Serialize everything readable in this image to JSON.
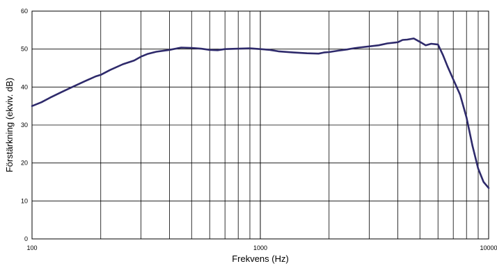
{
  "chart_data": {
    "type": "line",
    "title": "",
    "xlabel": "Frekvens (Hz)",
    "ylabel": "Förstärkning (ekviv. dB)",
    "xscale": "log",
    "xlim": [
      100,
      10000
    ],
    "ylim": [
      0,
      60
    ],
    "grid": true,
    "legend": "none",
    "x_tick_labels": [
      "100",
      "1000",
      "10000"
    ],
    "y_tick_labels": [
      "0",
      "10",
      "20",
      "30",
      "40",
      "50",
      "60"
    ],
    "series": [
      {
        "color": "#2e2a6b",
        "x": [
          100,
          110,
          120,
          135,
          150,
          170,
          190,
          200,
          220,
          250,
          280,
          300,
          320,
          350,
          400,
          450,
          500,
          550,
          600,
          650,
          700,
          800,
          900,
          1000,
          1100,
          1200,
          1400,
          1600,
          1800,
          1900,
          2000,
          2200,
          2400,
          2500,
          2700,
          3000,
          3300,
          3600,
          4000,
          4200,
          4400,
          4700,
          5000,
          5300,
          5600,
          6000,
          6300,
          6600,
          7000,
          7500,
          8000,
          8500,
          9000,
          9500,
          10000
        ],
        "y": [
          35,
          36,
          37.2,
          38.7,
          40,
          41.5,
          42.8,
          43.2,
          44.5,
          46,
          47,
          48,
          48.7,
          49.3,
          49.8,
          50.4,
          50.3,
          50.1,
          49.8,
          49.7,
          50.0,
          50.1,
          50.2,
          50.0,
          49.8,
          49.4,
          49.1,
          48.9,
          48.8,
          49.1,
          49.2,
          49.6,
          49.9,
          50.1,
          50.4,
          50.7,
          51.0,
          51.5,
          51.8,
          52.4,
          52.5,
          52.8,
          51.9,
          51.0,
          51.4,
          51.2,
          48.5,
          45.5,
          42.0,
          38.0,
          32.0,
          24.5,
          18.5,
          15.0,
          13.4
        ]
      }
    ]
  }
}
